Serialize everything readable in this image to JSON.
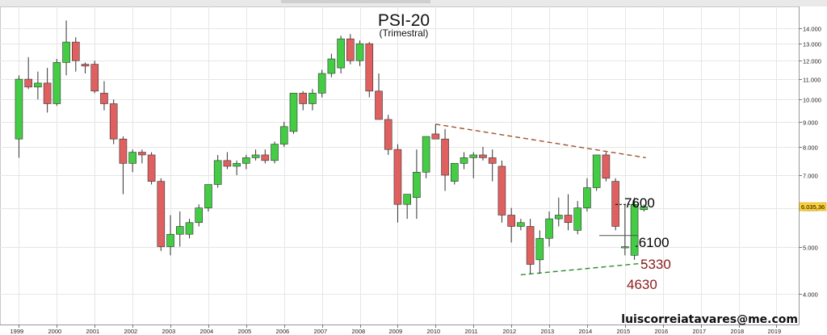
{
  "header": {
    "title": "PSI-20",
    "subtitle": "(Trimestral)"
  },
  "footer": {
    "watermark": "luiscorreiatavares@me.com"
  },
  "colors": {
    "up": "#44cc44",
    "down": "#e06060",
    "resistance": "#a0522d",
    "support": "#2e8b2e",
    "grid": "#e6e6e6",
    "price_tag": "#ffd23a"
  },
  "chart_data": {
    "type": "candlestick",
    "title": "PSI-20",
    "subtitle": "(Trimestral)",
    "x_axis": {
      "ticks": [
        "1999",
        "2000",
        "2001",
        "2002",
        "2003",
        "2004",
        "2005",
        "2006",
        "2007",
        "2008",
        "2009",
        "2010",
        "2011",
        "2012",
        "2013",
        "2014",
        "2015",
        "2016",
        "2017",
        "2018",
        "2019"
      ]
    },
    "y_axis": {
      "min": 3600,
      "max": 14800,
      "scale": "log",
      "position": "right",
      "ticks": [
        "4.000",
        "5.000",
        "6.000",
        "7.000",
        "8.000",
        "9.000",
        "10.000",
        "11.000",
        "12.000",
        "13.000",
        "14.000"
      ]
    },
    "candles": [
      [
        1999.0,
        8300,
        11200,
        7600,
        11000
      ],
      [
        1999.25,
        11000,
        12200,
        10500,
        10600
      ],
      [
        1999.5,
        10600,
        11400,
        10000,
        10800
      ],
      [
        1999.75,
        10800,
        11600,
        9400,
        9800
      ],
      [
        2000.0,
        9800,
        12100,
        9700,
        11900
      ],
      [
        2000.25,
        11900,
        14500,
        11200,
        13100
      ],
      [
        2000.5,
        13100,
        13400,
        11400,
        12000
      ],
      [
        2000.75,
        11800,
        11900,
        11300,
        11700
      ],
      [
        2001.0,
        11800,
        12000,
        10300,
        10400
      ],
      [
        2001.25,
        10300,
        10900,
        9500,
        9800
      ],
      [
        2001.5,
        9800,
        10000,
        8100,
        8300
      ],
      [
        2001.75,
        8300,
        8400,
        6400,
        7400
      ],
      [
        2002.0,
        7400,
        7900,
        7100,
        7800
      ],
      [
        2002.25,
        7800,
        7900,
        7400,
        7700
      ],
      [
        2002.5,
        7700,
        7800,
        6700,
        6800
      ],
      [
        2002.75,
        6800,
        6900,
        4900,
        5000
      ],
      [
        2003.0,
        5000,
        5800,
        4800,
        5300
      ],
      [
        2003.25,
        5300,
        5900,
        5000,
        5500
      ],
      [
        2003.5,
        5300,
        5700,
        5200,
        5600
      ],
      [
        2003.75,
        5600,
        6100,
        5500,
        6000
      ],
      [
        2004.0,
        6000,
        6700,
        5900,
        6700
      ],
      [
        2004.25,
        6700,
        7700,
        6600,
        7500
      ],
      [
        2004.5,
        7500,
        7800,
        7200,
        7300
      ],
      [
        2004.75,
        7300,
        7500,
        7000,
        7400
      ],
      [
        2005.0,
        7400,
        7700,
        7200,
        7600
      ],
      [
        2005.25,
        7600,
        7900,
        7500,
        7700
      ],
      [
        2005.5,
        7700,
        7900,
        7400,
        7500
      ],
      [
        2005.75,
        7500,
        8200,
        7400,
        8100
      ],
      [
        2006.0,
        8100,
        9000,
        8000,
        8800
      ],
      [
        2006.25,
        8600,
        10300,
        8500,
        10300
      ],
      [
        2006.5,
        10300,
        10400,
        9500,
        9800
      ],
      [
        2006.75,
        9800,
        10500,
        9500,
        10300
      ],
      [
        2007.0,
        10300,
        11500,
        10100,
        11300
      ],
      [
        2007.25,
        11300,
        12400,
        11100,
        12100
      ],
      [
        2007.5,
        11600,
        13500,
        11300,
        13300
      ],
      [
        2007.75,
        13300,
        13600,
        11800,
        12000
      ],
      [
        2008.0,
        12000,
        13200,
        11700,
        13000
      ],
      [
        2008.25,
        13000,
        13100,
        10100,
        10400
      ],
      [
        2008.5,
        10400,
        11300,
        9100,
        9100
      ],
      [
        2008.75,
        9100,
        9300,
        7700,
        7900
      ],
      [
        2009.0,
        7900,
        8100,
        5600,
        6100
      ],
      [
        2009.25,
        6100,
        6400,
        5700,
        6400
      ],
      [
        2009.5,
        6300,
        7900,
        5700,
        7100
      ],
      [
        2009.75,
        7100,
        8400,
        6900,
        8400
      ],
      [
        2010.0,
        8500,
        8900,
        8300,
        8300
      ],
      [
        2010.25,
        8300,
        8700,
        6500,
        7000
      ],
      [
        2010.5,
        6800,
        7400,
        6700,
        7400
      ],
      [
        2010.75,
        7400,
        7800,
        7200,
        7600
      ],
      [
        2011.0,
        7600,
        7800,
        6900,
        7700
      ],
      [
        2011.25,
        7700,
        8000,
        7500,
        7600
      ],
      [
        2011.5,
        7600,
        7900,
        6800,
        7400
      ],
      [
        2011.75,
        7300,
        7500,
        5600,
        5800
      ],
      [
        2012.0,
        5800,
        6000,
        5100,
        5500
      ],
      [
        2012.25,
        5500,
        5700,
        5400,
        5600
      ],
      [
        2012.5,
        5500,
        5700,
        4400,
        4600
      ],
      [
        2012.75,
        4700,
        5400,
        4400,
        5200
      ],
      [
        2013.0,
        5200,
        5900,
        5000,
        5700
      ],
      [
        2013.25,
        5700,
        6300,
        5500,
        5800
      ],
      [
        2013.5,
        5800,
        6400,
        5400,
        5600
      ],
      [
        2013.75,
        5400,
        6200,
        5300,
        6000
      ],
      [
        2014.0,
        6000,
        6900,
        5900,
        6600
      ],
      [
        2014.25,
        6600,
        7700,
        6500,
        7700
      ],
      [
        2014.5,
        7700,
        7800,
        6800,
        6900
      ],
      [
        2014.75,
        6800,
        6900,
        5400,
        5500
      ],
      [
        2015.0,
        5000,
        6100,
        4800,
        5000
      ],
      [
        2015.25,
        4800,
        6300,
        4700,
        6100
      ],
      [
        2015.5,
        5950,
        6100,
        5900,
        6035
      ]
    ],
    "annotations": [
      {
        "label": "7600",
        "color": "#000000"
      },
      {
        "label": ".6100",
        "color": "#000000"
      },
      {
        "label": "5330",
        "color": "#8b1a1a"
      },
      {
        "label": "4630",
        "color": "#8b1a1a"
      }
    ],
    "trendlines": [
      {
        "name": "resistance",
        "from": [
          2010.0,
          8900
        ],
        "to": [
          2015.25,
          7600
        ],
        "color": "#a0522d",
        "style": "dashed"
      },
      {
        "name": "support",
        "from": [
          2012.25,
          4380
        ],
        "to": [
          2015.25,
          4630
        ],
        "color": "#2e8b2e",
        "style": "dashed"
      }
    ],
    "last_price": "6.035,36",
    "grid": true
  }
}
